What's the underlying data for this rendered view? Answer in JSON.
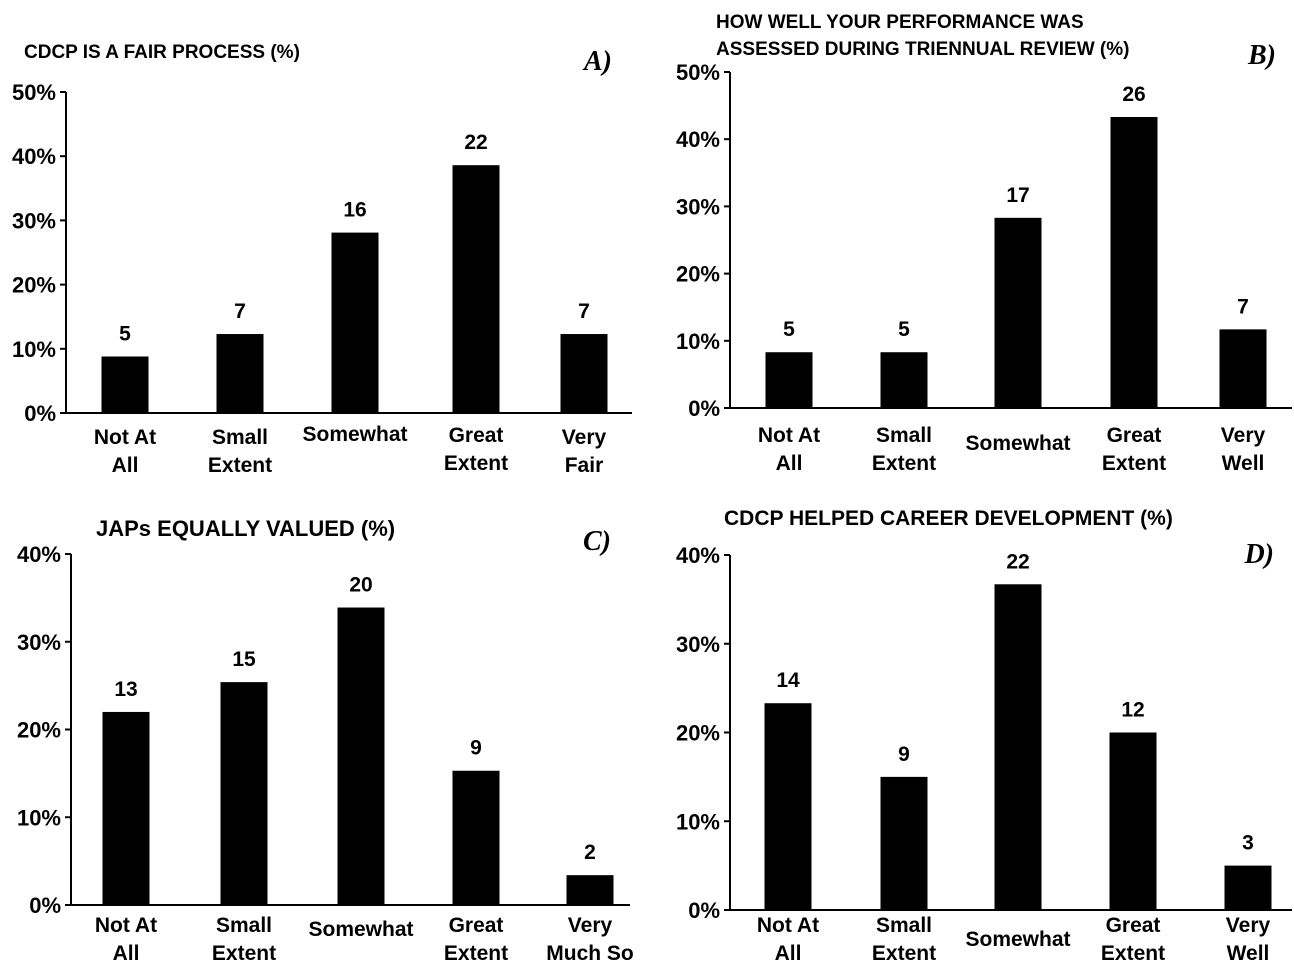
{
  "colors": {
    "bar": "#000000",
    "axis": "#000000",
    "background": "#ffffff"
  },
  "chart_data": [
    {
      "type": "bar",
      "panel": "A)",
      "title": [
        "CDCP IS A FAIR PROCESS (%)"
      ],
      "categories": [
        [
          "Not At",
          "All"
        ],
        [
          "Small",
          "Extent"
        ],
        [
          "Somewhat"
        ],
        [
          "Great",
          "Extent"
        ],
        [
          "Very",
          "Fair"
        ]
      ],
      "values": [
        8.8,
        12.3,
        28.1,
        38.6,
        12.3
      ],
      "counts": [
        "5",
        "7",
        "16",
        "22",
        "7"
      ],
      "yticks": [
        "0%",
        "10%",
        "20%",
        "30%",
        "40%",
        "50%"
      ],
      "ylim": [
        0,
        50
      ],
      "xlabel": "",
      "ylabel": "",
      "grid": false
    },
    {
      "type": "bar",
      "panel": "B)",
      "title": [
        "HOW WELL YOUR PERFORMANCE WAS",
        "ASSESSED DURING TRIENNUAL REVIEW (%)"
      ],
      "categories": [
        [
          "Not At",
          "All"
        ],
        [
          "Small",
          "Extent"
        ],
        [
          "Somewhat"
        ],
        [
          "Great",
          "Extent"
        ],
        [
          "Very",
          "Well"
        ]
      ],
      "values": [
        8.3,
        8.3,
        28.3,
        43.3,
        11.7
      ],
      "counts": [
        "5",
        "5",
        "17",
        "26",
        "7"
      ],
      "yticks": [
        "0%",
        "10%",
        "20%",
        "30%",
        "40%",
        "50%"
      ],
      "ylim": [
        0,
        50
      ],
      "xlabel": "",
      "ylabel": "",
      "grid": false
    },
    {
      "type": "bar",
      "panel": "C)",
      "title": [
        "JAPs EQUALLY VALUED (%)"
      ],
      "categories": [
        [
          "Not At",
          "All"
        ],
        [
          "Small",
          "Extent"
        ],
        [
          "Somewhat"
        ],
        [
          "Great",
          "Extent"
        ],
        [
          "Very",
          "Much So"
        ]
      ],
      "values": [
        22.0,
        25.4,
        33.9,
        15.3,
        3.4
      ],
      "counts": [
        "13",
        "15",
        "20",
        "9",
        "2"
      ],
      "yticks": [
        "0%",
        "10%",
        "20%",
        "30%",
        "40%"
      ],
      "ylim": [
        0,
        40
      ],
      "xlabel": "",
      "ylabel": "",
      "grid": false
    },
    {
      "type": "bar",
      "panel": "D)",
      "title": [
        "CDCP HELPED CAREER DEVELOPMENT (%)"
      ],
      "categories": [
        [
          "Not At",
          "All"
        ],
        [
          "Small",
          "Extent"
        ],
        [
          "Somewhat"
        ],
        [
          "Great",
          "Extent"
        ],
        [
          "Very",
          "Well"
        ]
      ],
      "values": [
        23.3,
        15.0,
        36.7,
        20.0,
        5.0
      ],
      "counts": [
        "14",
        "9",
        "22",
        "12",
        "3"
      ],
      "yticks": [
        "0%",
        "10%",
        "20%",
        "30%",
        "40%"
      ],
      "ylim": [
        0,
        40
      ],
      "xlabel": "",
      "ylabel": "",
      "grid": false
    }
  ]
}
